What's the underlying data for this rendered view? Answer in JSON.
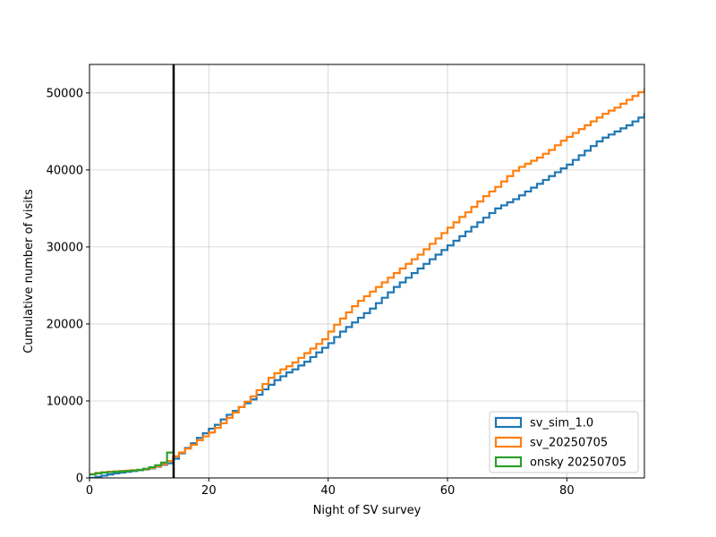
{
  "chart_data": {
    "type": "line",
    "title": "",
    "xlabel": "Night of SV survey",
    "ylabel": "Cumulative number of visits",
    "xlim": [
      0,
      93
    ],
    "ylim": [
      0,
      53700
    ],
    "xticks": [
      0,
      20,
      40,
      60,
      80
    ],
    "yticks": [
      0,
      10000,
      20000,
      30000,
      40000,
      50000
    ],
    "grid": true,
    "legend_position": "lower right",
    "vline": {
      "x": 14.1,
      "color": "#000000"
    },
    "series": [
      {
        "name": "sv_sim_1.0",
        "color": "#1f77b4",
        "x": [
          0,
          1,
          2,
          3,
          4,
          5,
          6,
          7,
          8,
          9,
          10,
          11,
          12,
          13,
          14,
          15,
          16,
          17,
          18,
          19,
          20,
          21,
          22,
          23,
          24,
          25,
          26,
          27,
          28,
          29,
          30,
          31,
          32,
          33,
          34,
          35,
          36,
          37,
          38,
          39,
          40,
          41,
          42,
          43,
          44,
          45,
          46,
          47,
          48,
          49,
          50,
          51,
          52,
          53,
          54,
          55,
          56,
          57,
          58,
          59,
          60,
          61,
          62,
          63,
          64,
          65,
          66,
          67,
          68,
          69,
          70,
          71,
          72,
          73,
          74,
          75,
          76,
          77,
          78,
          79,
          80,
          81,
          82,
          83,
          84,
          85,
          86,
          87,
          88,
          89,
          90,
          91,
          92,
          93
        ],
        "y": [
          0,
          150,
          300,
          450,
          600,
          700,
          800,
          900,
          1000,
          1100,
          1250,
          1450,
          1700,
          1900,
          2500,
          3200,
          3900,
          4500,
          5200,
          5800,
          6400,
          6900,
          7600,
          8200,
          8700,
          9200,
          9700,
          10200,
          10800,
          11500,
          12100,
          12700,
          13200,
          13700,
          14100,
          14600,
          15100,
          15700,
          16300,
          16900,
          17500,
          18300,
          19000,
          19600,
          20200,
          20800,
          21400,
          22000,
          22700,
          23400,
          24100,
          24800,
          25400,
          26000,
          26600,
          27200,
          27800,
          28400,
          29000,
          29600,
          30200,
          30800,
          31400,
          32000,
          32600,
          33200,
          33800,
          34400,
          35000,
          35400,
          35800,
          36200,
          36700,
          37200,
          37700,
          38200,
          38700,
          39200,
          39700,
          40200,
          40700,
          41300,
          41900,
          42500,
          43100,
          43700,
          44200,
          44600,
          45000,
          45400,
          45800,
          46300,
          46800,
          47400
        ]
      },
      {
        "name": "sv_20250705",
        "color": "#ff7f0e",
        "x": [
          0,
          1,
          2,
          3,
          4,
          5,
          6,
          7,
          8,
          9,
          10,
          11,
          12,
          13,
          14,
          15,
          16,
          17,
          18,
          19,
          20,
          21,
          22,
          23,
          24,
          25,
          26,
          27,
          28,
          29,
          30,
          31,
          32,
          33,
          34,
          35,
          36,
          37,
          38,
          39,
          40,
          41,
          42,
          43,
          44,
          45,
          46,
          47,
          48,
          49,
          50,
          51,
          52,
          53,
          54,
          55,
          56,
          57,
          58,
          59,
          60,
          61,
          62,
          63,
          64,
          65,
          66,
          67,
          68,
          69,
          70,
          71,
          72,
          73,
          74,
          75,
          76,
          77,
          78,
          79,
          80,
          81,
          82,
          83,
          84,
          85,
          86,
          87,
          88,
          89,
          90,
          91,
          92,
          93
        ],
        "y": [
          500,
          650,
          750,
          800,
          850,
          900,
          950,
          1000,
          1050,
          1150,
          1300,
          1500,
          1800,
          2200,
          2800,
          3300,
          3800,
          4300,
          4900,
          5400,
          5900,
          6500,
          7100,
          7800,
          8500,
          9200,
          9900,
          10600,
          11400,
          12200,
          13000,
          13600,
          14100,
          14500,
          15000,
          15600,
          16200,
          16800,
          17400,
          18000,
          19000,
          19900,
          20700,
          21500,
          22300,
          23000,
          23600,
          24200,
          24800,
          25400,
          26000,
          26600,
          27200,
          27800,
          28400,
          29000,
          29700,
          30400,
          31100,
          31800,
          32500,
          33200,
          33900,
          34500,
          35200,
          35900,
          36600,
          37200,
          37800,
          38500,
          39200,
          39900,
          40400,
          40800,
          41200,
          41600,
          42100,
          42600,
          43200,
          43800,
          44300,
          44800,
          45300,
          45800,
          46300,
          46800,
          47300,
          47700,
          48100,
          48600,
          49100,
          49600,
          50100,
          50600
        ]
      },
      {
        "name": "onsky 20250705",
        "color": "#2ca02c",
        "x": [
          0,
          1,
          2,
          3,
          4,
          5,
          6,
          7,
          8,
          9,
          10,
          11,
          12,
          13,
          14
        ],
        "y": [
          450,
          600,
          700,
          750,
          800,
          850,
          900,
          950,
          1050,
          1200,
          1400,
          1650,
          2000,
          3300,
          3300
        ]
      }
    ]
  }
}
